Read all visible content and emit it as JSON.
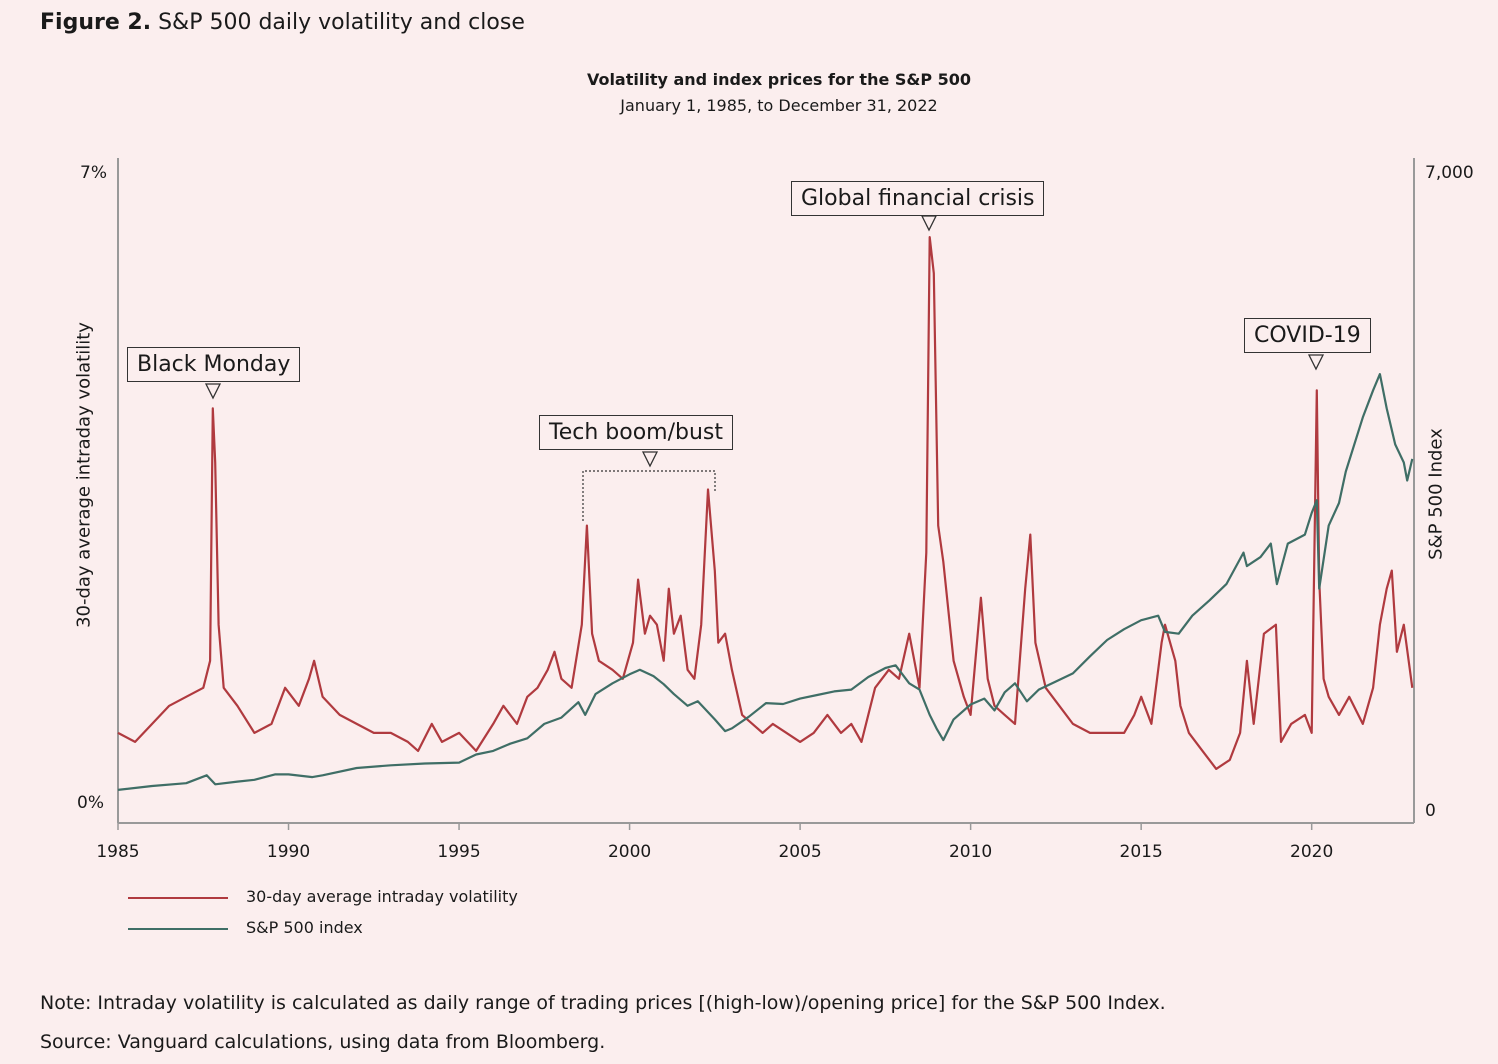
{
  "figure": {
    "label": "Figure 2.",
    "title": "S&P 500 daily volatility and close"
  },
  "colors": {
    "volatility": "#b03a3f",
    "index": "#3f6e66",
    "axis": "#999999",
    "background": "#fbeeee"
  },
  "chart_data": {
    "type": "line",
    "title": "Volatility and index prices for the S&P 500",
    "subtitle": "January 1, 1985, to December 31, 2022",
    "ylabel_left": "30-day average intraday volatility",
    "ylabel_right": "S&P 500 Index",
    "xlim": [
      1985,
      2023
    ],
    "ylim_left": [
      0,
      7
    ],
    "ylim_right": [
      0,
      7000
    ],
    "x_ticks": [
      "1985",
      "1990",
      "1995",
      "2000",
      "2005",
      "2010",
      "2015",
      "2020"
    ],
    "y_left_ticks": [
      "0%",
      "7%"
    ],
    "y_right_ticks": [
      "0",
      "7,000"
    ],
    "legend_position": "bottom-left",
    "series": [
      {
        "name": "30-day average intraday volatility",
        "axis": "left",
        "x": [
          1985.0,
          1985.5,
          1986.0,
          1986.5,
          1987.0,
          1987.5,
          1987.7,
          1987.78,
          1987.85,
          1987.95,
          1988.1,
          1988.5,
          1989.0,
          1989.5,
          1989.9,
          1990.3,
          1990.6,
          1990.75,
          1991.0,
          1991.5,
          1992.0,
          1992.5,
          1993.0,
          1993.5,
          1993.8,
          1994.2,
          1994.5,
          1995.0,
          1995.5,
          1996.0,
          1996.3,
          1996.7,
          1997.0,
          1997.3,
          1997.6,
          1997.8,
          1998.0,
          1998.3,
          1998.6,
          1998.75,
          1998.9,
          1999.1,
          1999.5,
          1999.8,
          2000.1,
          2000.25,
          2000.45,
          2000.6,
          2000.8,
          2001.0,
          2001.15,
          2001.3,
          2001.5,
          2001.7,
          2001.9,
          2002.1,
          2002.3,
          2002.5,
          2002.6,
          2002.8,
          2003.0,
          2003.3,
          2003.6,
          2003.9,
          2004.2,
          2004.6,
          2005.0,
          2005.4,
          2005.8,
          2006.2,
          2006.5,
          2006.8,
          2007.2,
          2007.6,
          2007.9,
          2008.2,
          2008.5,
          2008.7,
          2008.8,
          2008.92,
          2009.05,
          2009.2,
          2009.5,
          2009.8,
          2010.0,
          2010.3,
          2010.5,
          2010.7,
          2011.0,
          2011.3,
          2011.6,
          2011.75,
          2011.9,
          2012.2,
          2012.6,
          2013.0,
          2013.5,
          2014.0,
          2014.5,
          2014.8,
          2015.0,
          2015.3,
          2015.6,
          2015.7,
          2016.0,
          2016.15,
          2016.4,
          2016.8,
          2017.2,
          2017.6,
          2017.9,
          2018.1,
          2018.3,
          2018.6,
          2018.95,
          2019.1,
          2019.4,
          2019.8,
          2020.0,
          2020.15,
          2020.22,
          2020.35,
          2020.5,
          2020.8,
          2021.1,
          2021.5,
          2021.8,
          2022.0,
          2022.2,
          2022.35,
          2022.5,
          2022.7,
          2022.95
        ],
        "values": [
          0.8,
          0.7,
          0.9,
          1.1,
          1.2,
          1.3,
          1.6,
          4.4,
          3.8,
          2.0,
          1.3,
          1.1,
          0.8,
          0.9,
          1.3,
          1.1,
          1.4,
          1.6,
          1.2,
          1.0,
          0.9,
          0.8,
          0.8,
          0.7,
          0.6,
          0.9,
          0.7,
          0.8,
          0.6,
          0.9,
          1.1,
          0.9,
          1.2,
          1.3,
          1.5,
          1.7,
          1.4,
          1.3,
          2.0,
          3.1,
          1.9,
          1.6,
          1.5,
          1.4,
          1.8,
          2.5,
          1.9,
          2.1,
          2.0,
          1.6,
          2.4,
          1.9,
          2.1,
          1.5,
          1.4,
          2.0,
          3.5,
          2.6,
          1.8,
          1.9,
          1.5,
          1.0,
          0.9,
          0.8,
          0.9,
          0.8,
          0.7,
          0.8,
          1.0,
          0.8,
          0.9,
          0.7,
          1.3,
          1.5,
          1.4,
          1.9,
          1.3,
          2.8,
          6.3,
          5.9,
          3.1,
          2.7,
          1.6,
          1.2,
          1.0,
          2.3,
          1.4,
          1.1,
          1.0,
          0.9,
          2.4,
          3.0,
          1.8,
          1.3,
          1.1,
          0.9,
          0.8,
          0.8,
          0.8,
          1.0,
          1.2,
          0.9,
          1.8,
          2.0,
          1.6,
          1.1,
          0.8,
          0.6,
          0.4,
          0.5,
          0.8,
          1.6,
          0.9,
          1.9,
          2.0,
          0.7,
          0.9,
          1.0,
          0.8,
          4.6,
          2.5,
          1.4,
          1.2,
          1.0,
          1.2,
          0.9,
          1.3,
          2.0,
          2.4,
          2.6,
          1.7,
          2.0,
          1.3
        ]
      },
      {
        "name": "S&P 500 index",
        "axis": "right",
        "x": [
          1985.0,
          1986.0,
          1987.0,
          1987.6,
          1987.85,
          1988.5,
          1989.0,
          1989.6,
          1990.0,
          1990.7,
          1991.0,
          1992.0,
          1993.0,
          1994.0,
          1995.0,
          1995.5,
          1996.0,
          1996.5,
          1997.0,
          1997.5,
          1998.0,
          1998.5,
          1998.7,
          1999.0,
          1999.5,
          2000.0,
          2000.3,
          2000.7,
          2001.0,
          2001.3,
          2001.7,
          2002.0,
          2002.5,
          2002.8,
          2003.0,
          2003.5,
          2004.0,
          2004.5,
          2005.0,
          2005.5,
          2006.0,
          2006.5,
          2007.0,
          2007.5,
          2007.8,
          2008.2,
          2008.5,
          2008.8,
          2009.0,
          2009.2,
          2009.5,
          2010.0,
          2010.4,
          2010.7,
          2011.0,
          2011.3,
          2011.65,
          2012.0,
          2012.5,
          2013.0,
          2013.5,
          2014.0,
          2014.5,
          2015.0,
          2015.5,
          2015.7,
          2016.1,
          2016.5,
          2017.0,
          2017.5,
          2018.0,
          2018.1,
          2018.5,
          2018.8,
          2018.98,
          2019.3,
          2019.8,
          2020.0,
          2020.15,
          2020.22,
          2020.5,
          2020.8,
          2021.0,
          2021.5,
          2021.8,
          2022.0,
          2022.2,
          2022.45,
          2022.7,
          2022.8,
          2022.95
        ],
        "values": [
          167,
          211,
          242,
          330,
          230,
          260,
          280,
          340,
          340,
          310,
          330,
          410,
          440,
          460,
          470,
          560,
          600,
          680,
          740,
          900,
          970,
          1140,
          1000,
          1230,
          1350,
          1450,
          1500,
          1430,
          1340,
          1230,
          1100,
          1150,
          950,
          820,
          850,
          980,
          1130,
          1120,
          1180,
          1220,
          1260,
          1280,
          1420,
          1520,
          1550,
          1350,
          1280,
          1000,
          850,
          720,
          950,
          1115,
          1180,
          1050,
          1250,
          1350,
          1150,
          1280,
          1370,
          1460,
          1650,
          1830,
          1950,
          2050,
          2100,
          1920,
          1900,
          2100,
          2270,
          2450,
          2800,
          2650,
          2750,
          2900,
          2450,
          2900,
          3000,
          3240,
          3380,
          2400,
          3100,
          3350,
          3700,
          4300,
          4600,
          4780,
          4400,
          4000,
          3800,
          3600,
          3840
        ]
      }
    ],
    "annotations": [
      "Black Monday",
      "Tech boom/bust",
      "Global financial crisis",
      "COVID-19"
    ]
  },
  "legend": [
    {
      "label": "30-day average intraday volatility"
    },
    {
      "label": "S&P 500 index"
    }
  ],
  "notes": {
    "note": "Note: Intraday volatility is calculated as daily range of trading prices [(high-low)/opening price] for the S&P 500 Index.",
    "source": "Source: Vanguard calculations, using data from Bloomberg."
  }
}
